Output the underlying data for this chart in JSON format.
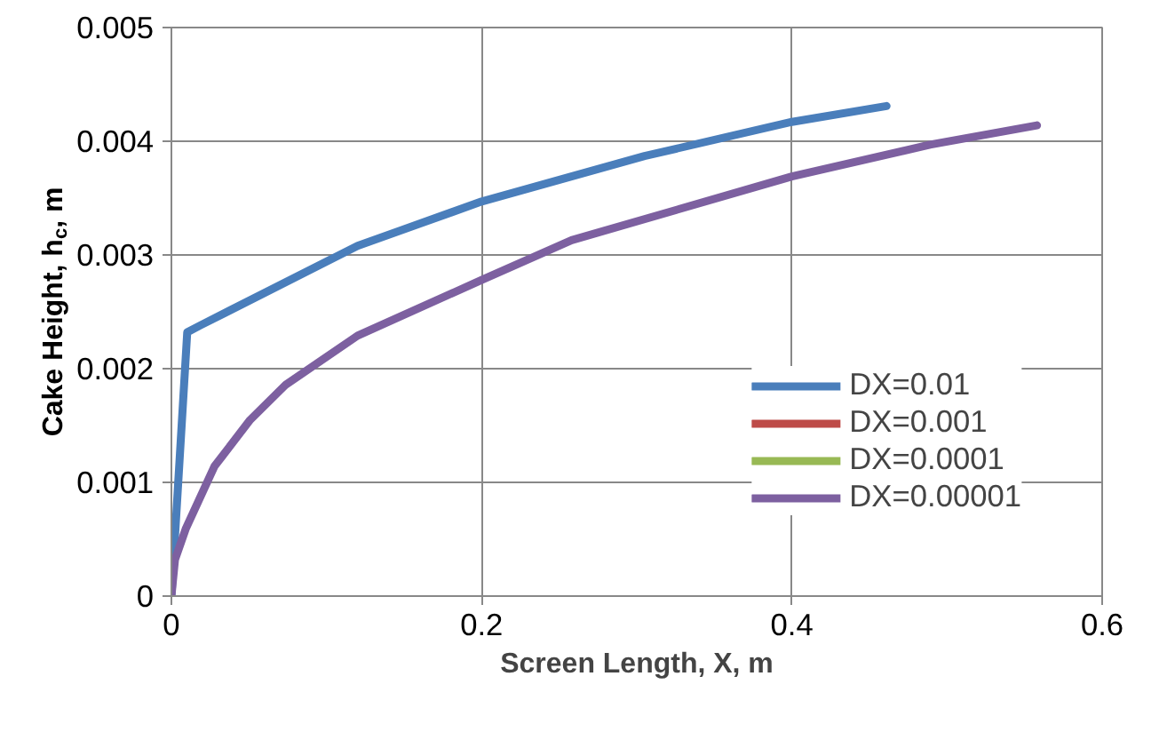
{
  "chart_data": {
    "type": "line",
    "xlabel": "Screen Length, X, m",
    "ylabel": "Cake Height, h$_{c}$, m",
    "xlim": [
      0,
      0.6
    ],
    "xticks": [
      0,
      0.2,
      0.4,
      0.6
    ],
    "ylim": [
      0,
      0.005
    ],
    "yticks": [
      0,
      0.001,
      0.002,
      0.003,
      0.004,
      0.005
    ],
    "grid": true,
    "legend": "bottom right",
    "marker": "none",
    "line_style": "solid",
    "series": [
      {
        "name": "DX=0.01",
        "color": "#4a7ebb",
        "x": [
          0,
          0.0102,
          0.0185,
          0.12,
          0.2,
          0.305,
          0.4,
          0.461
        ],
        "values": [
          0,
          0.00232,
          0.00238,
          0.00308,
          0.00347,
          0.00387,
          0.00417,
          0.00431
        ]
      },
      {
        "name": "DX=0.001",
        "color": "#be4b48"
      },
      {
        "name": "DX=0.0001",
        "color": "#98b954"
      },
      {
        "name": "DX=0.00001",
        "color": "#7d60a0",
        "x": [
          0,
          0.0023,
          0.0092,
          0.0277,
          0.0508,
          0.0738,
          0.12,
          0.2,
          0.258,
          0.4,
          0.489,
          0.558
        ],
        "values": [
          0,
          0.00032,
          0.00059,
          0.00114,
          0.00155,
          0.00186,
          0.00229,
          0.00278,
          0.00313,
          0.00369,
          0.00397,
          0.00414
        ]
      }
    ]
  }
}
